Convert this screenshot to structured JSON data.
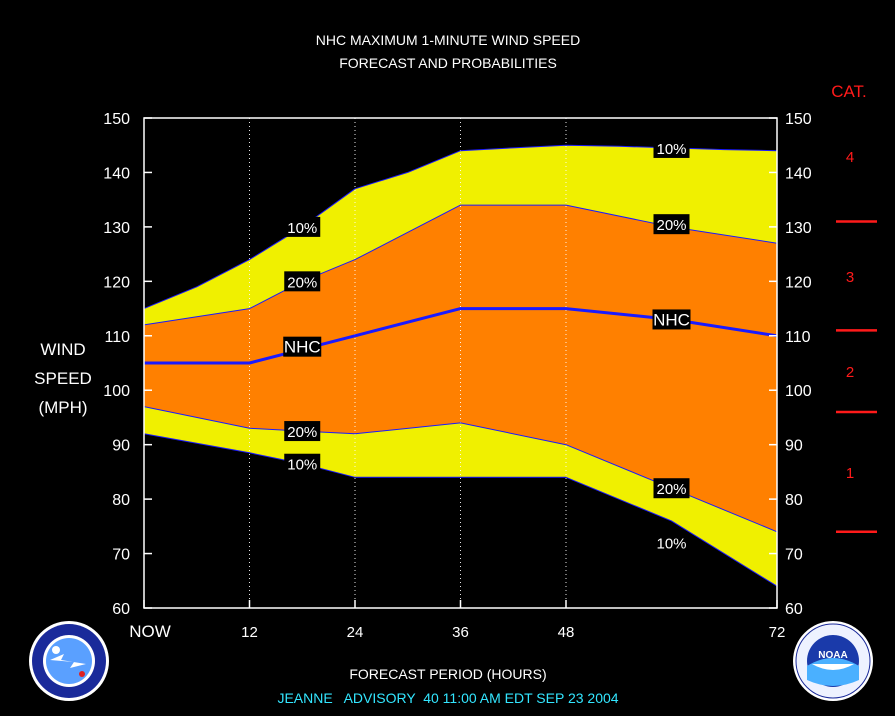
{
  "chart_data": {
    "type": "area",
    "title": [
      "NHC MAXIMUM 1-MINUTE WIND SPEED",
      "FORECAST AND PROBABILITIES"
    ],
    "xlabel": "FORECAST PERIOD (HOURS)",
    "ylabel": [
      "WIND",
      "SPEED",
      "(MPH)"
    ],
    "advisory": "JEANNE   ADVISORY  40 11:00 AM EDT SEP 23 2004",
    "x_hours": [
      0,
      12,
      24,
      36,
      48,
      72
    ],
    "x_tick_labels": [
      "NOW",
      "12",
      "24",
      "36",
      "48",
      "72"
    ],
    "xlim": [
      0,
      72
    ],
    "ylim": [
      60,
      150
    ],
    "y_ticks": [
      60,
      70,
      80,
      90,
      100,
      110,
      120,
      130,
      140,
      150
    ],
    "grid": "vertical dotted",
    "series": [
      {
        "name": "10%",
        "role": "upper_10",
        "color": "#f0f000",
        "x": [
          0,
          6,
          12,
          18,
          24,
          30,
          36,
          42,
          48,
          54,
          60,
          66,
          72
        ],
        "y": [
          115,
          119,
          124,
          130,
          137,
          140,
          144,
          144.5,
          145,
          144.8,
          144.5,
          144.2,
          144
        ]
      },
      {
        "name": "20%",
        "role": "upper_20",
        "color": "#ff8000",
        "x": [
          0,
          12,
          18,
          24,
          36,
          48,
          60,
          72
        ],
        "y": [
          112,
          115,
          120,
          124,
          134,
          134,
          130,
          127
        ]
      },
      {
        "name": "NHC",
        "role": "nhc",
        "color": "#1a1aff",
        "x": [
          0,
          12,
          24,
          36,
          48,
          60,
          72
        ],
        "y": [
          105,
          105,
          110,
          115,
          115,
          113,
          110
        ]
      },
      {
        "name": "20%",
        "role": "lower_20",
        "color": "#ff8000",
        "x": [
          0,
          12,
          18,
          24,
          36,
          48,
          60,
          72
        ],
        "y": [
          97,
          93,
          92.5,
          92,
          94,
          90,
          82,
          74
        ]
      },
      {
        "name": "10%",
        "role": "lower_10",
        "color": "#f0f000",
        "x": [
          0,
          12,
          18,
          24,
          36,
          48,
          60,
          72
        ],
        "y": [
          92,
          88.5,
          86.5,
          84,
          84,
          84,
          76,
          64
        ]
      }
    ],
    "band_labels": [
      {
        "text": "10%",
        "x": 18,
        "y": 130
      },
      {
        "text": "20%",
        "x": 18,
        "y": 120
      },
      {
        "text": "NHC",
        "x": 18,
        "y": 108
      },
      {
        "text": "20%",
        "x": 18,
        "y": 92.5
      },
      {
        "text": "10%",
        "x": 18,
        "y": 86.5
      },
      {
        "text": "10%",
        "x": 60,
        "y": 144.5
      },
      {
        "text": "20%",
        "x": 60,
        "y": 130.5
      },
      {
        "text": "NHC",
        "x": 60,
        "y": 113
      },
      {
        "text": "20%",
        "x": 60,
        "y": 82
      },
      {
        "text": "10%",
        "x": 60,
        "y": 72
      }
    ],
    "category_scale": {
      "title": "CAT.",
      "dividers": [
        131,
        111,
        96,
        74
      ],
      "labels": [
        {
          "text": "4",
          "y": 143
        },
        {
          "text": "3",
          "y": 121
        },
        {
          "text": "2",
          "y": 103.5
        },
        {
          "text": "1",
          "y": 85
        }
      ]
    },
    "colors": {
      "prob_10": "#f0f000",
      "prob_20": "#ff8000",
      "nhc_line": "#1a1aff",
      "category": "#ff1a1a",
      "advisory_text": "#33e6ff"
    }
  },
  "logos": {
    "left": "nws-logo",
    "right": "noaa-logo",
    "noaa_text": "NOAA"
  }
}
